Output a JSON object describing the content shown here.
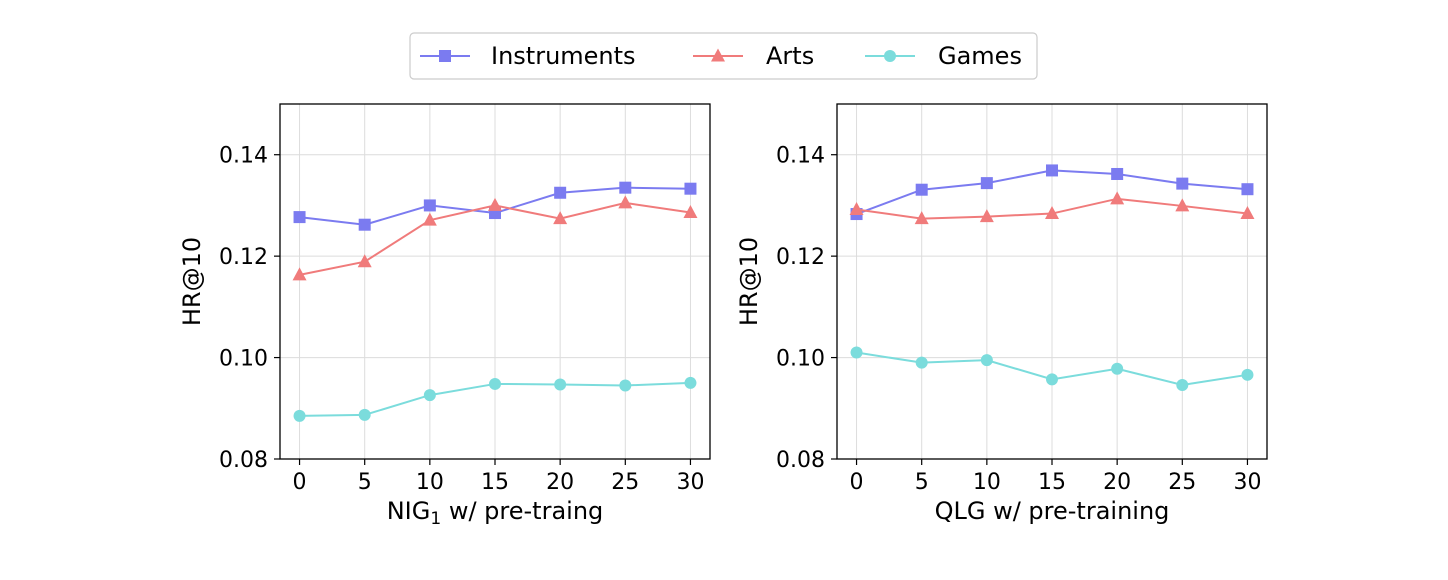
{
  "legend": {
    "placement": "top-center",
    "entries": [
      {
        "name": "Instruments",
        "color": "#7b7bf0",
        "marker": "square"
      },
      {
        "name": "Arts",
        "color": "#f07b7b",
        "marker": "triangle"
      },
      {
        "name": "Games",
        "color": "#7bdcdc",
        "marker": "circle"
      }
    ]
  },
  "chart_data": [
    {
      "type": "line",
      "xlabel": "NIG",
      "xlabel_subscript": "1",
      "xlabel_suffix": " w/ pre-traing",
      "ylabel": "HR@10",
      "x": [
        0,
        5,
        10,
        15,
        20,
        25,
        30
      ],
      "xticks": [
        "0",
        "5",
        "10",
        "15",
        "20",
        "25",
        "30"
      ],
      "xlim": [
        -1.5,
        31.5
      ],
      "ylim": [
        0.08,
        0.15
      ],
      "yticks": [
        "0.08",
        "0.10",
        "0.12",
        "0.14"
      ],
      "ytick_values": [
        0.08,
        0.1,
        0.12,
        0.14
      ],
      "grid": true,
      "series": [
        {
          "name": "Instruments",
          "values": [
            0.1277,
            0.1262,
            0.13,
            0.1285,
            0.1325,
            0.1335,
            0.1333
          ]
        },
        {
          "name": "Arts",
          "values": [
            0.1163,
            0.1189,
            0.1271,
            0.13,
            0.1274,
            0.1305,
            0.1286
          ]
        },
        {
          "name": "Games",
          "values": [
            0.0885,
            0.0887,
            0.0926,
            0.0948,
            0.0947,
            0.0945,
            0.095
          ]
        }
      ]
    },
    {
      "type": "line",
      "xlabel": "QLG w/ pre-training",
      "xlabel_subscript": "",
      "xlabel_suffix": "",
      "ylabel": "HR@10",
      "x": [
        0,
        5,
        10,
        15,
        20,
        25,
        30
      ],
      "xticks": [
        "0",
        "5",
        "10",
        "15",
        "20",
        "25",
        "30"
      ],
      "xlim": [
        -1.5,
        31.5
      ],
      "ylim": [
        0.08,
        0.15
      ],
      "yticks": [
        "0.08",
        "0.10",
        "0.12",
        "0.14"
      ],
      "ytick_values": [
        0.08,
        0.1,
        0.12,
        0.14
      ],
      "grid": true,
      "series": [
        {
          "name": "Instruments",
          "values": [
            0.1283,
            0.1331,
            0.1344,
            0.1369,
            0.1362,
            0.1343,
            0.1332
          ]
        },
        {
          "name": "Arts",
          "values": [
            0.1292,
            0.1274,
            0.1278,
            0.1284,
            0.1313,
            0.1299,
            0.1284
          ]
        },
        {
          "name": "Games",
          "values": [
            0.101,
            0.099,
            0.0995,
            0.0957,
            0.0978,
            0.0946,
            0.0966
          ]
        }
      ]
    }
  ]
}
